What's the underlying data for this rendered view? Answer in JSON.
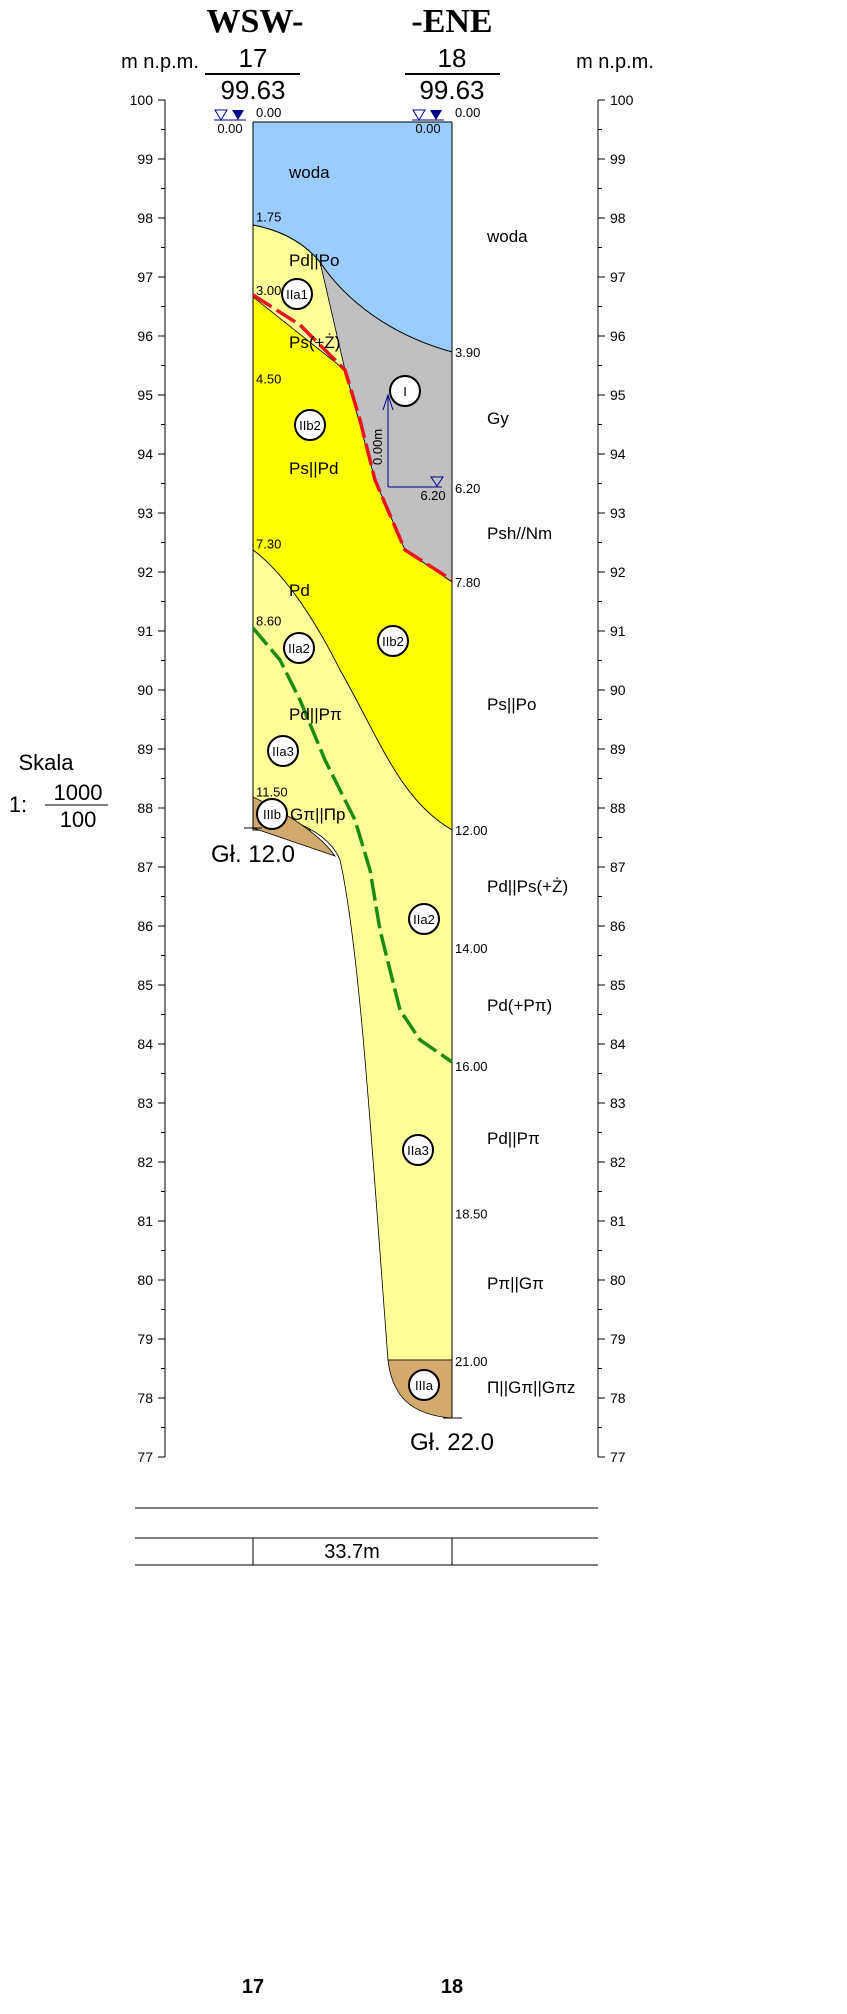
{
  "header": {
    "left_direction": "WSW-",
    "right_direction": "-ENE",
    "left_unit": "m n.p.m.",
    "right_unit": "m n.p.m."
  },
  "boreholes": [
    {
      "name": "17",
      "elevation": "99.63",
      "water_level": "0.00",
      "water_depth": "0.00",
      "final_depth": "Gł. 12.0",
      "depths": [
        "1.75",
        "3.00",
        "4.50",
        "7.30",
        "8.60",
        "11.50"
      ]
    },
    {
      "name": "18",
      "elevation": "99.63",
      "water_level": "0.00",
      "water_depth": "0.00",
      "final_depth": "Gł. 22.0",
      "depths": [
        "3.90",
        "6.20",
        "7.80",
        "12.00",
        "14.00",
        "16.00",
        "18.50",
        "21.00"
      ],
      "layers": [
        "woda",
        "Gy",
        "Psh//Nm",
        "Ps||Po",
        "Pd||Ps(+Ż)",
        "Pd(+Pπ)",
        "Pd||Pπ",
        "Pπ||Gπ",
        "Π||Gπ||Gπz"
      ]
    }
  ],
  "elevation_ticks": [
    100,
    99,
    98,
    97,
    96,
    95,
    94,
    93,
    92,
    91,
    90,
    89,
    88,
    87,
    86,
    85,
    84,
    83,
    82,
    81,
    80,
    79,
    78,
    77
  ],
  "section_labels": [
    "woda",
    "Pd||Po",
    "Ps(+Ż)",
    "Ps||Pd",
    "Pd",
    "Pd||Pπ",
    "Gπ||Πp"
  ],
  "units": [
    "IIa1",
    "I",
    "IIb2",
    "IIa2",
    "IIb2",
    "IIa3",
    "IIIb",
    "IIa2",
    "IIa3",
    "IIIa"
  ],
  "inset": {
    "length": "0.00m",
    "water": "6.20"
  },
  "scale": {
    "label": "Skala",
    "prefix": "1:",
    "horizontal": "1000",
    "vertical": "100"
  },
  "distance": "33.7m"
}
